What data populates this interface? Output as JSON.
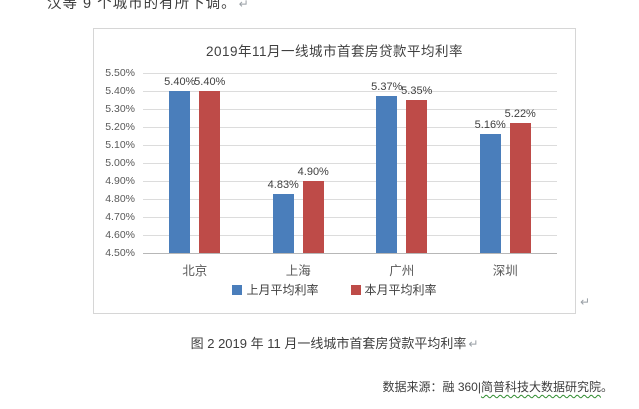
{
  "document": {
    "top_line": "汉等 9 个城市的有所下调。",
    "figure_caption": "图 2 2019 年 11 月一线城市首套房贷款平均利率",
    "source": {
      "prefix": "数据来源：融 360|",
      "underlined": "简普科技大数据研究院",
      "suffix": "。"
    },
    "paragraph_mark": "↵"
  },
  "chart_data": {
    "type": "bar",
    "title": "2019年11月一线城市首套房贷款平均利率",
    "categories": [
      "北京",
      "上海",
      "广州",
      "深圳"
    ],
    "series": [
      {
        "name": "上月平均利率",
        "color": "#4A7EBB",
        "values": [
          5.4,
          4.83,
          5.37,
          5.16
        ],
        "labels": [
          "5.40%",
          "4.83%",
          "5.37%",
          "5.16%"
        ]
      },
      {
        "name": "本月平均利率",
        "color": "#BE4B48",
        "values": [
          5.4,
          4.9,
          5.35,
          5.22
        ],
        "labels": [
          "5.40%",
          "4.90%",
          "5.35%",
          "5.22%"
        ]
      }
    ],
    "ylim": [
      4.5,
      5.5
    ],
    "ytick_step": 0.1,
    "ytick_labels": [
      "5.50%",
      "5.40%",
      "5.30%",
      "5.20%",
      "5.10%",
      "5.00%",
      "4.90%",
      "4.80%",
      "4.70%",
      "4.60%",
      "4.50%"
    ],
    "grid": true,
    "legend_position": "bottom"
  }
}
